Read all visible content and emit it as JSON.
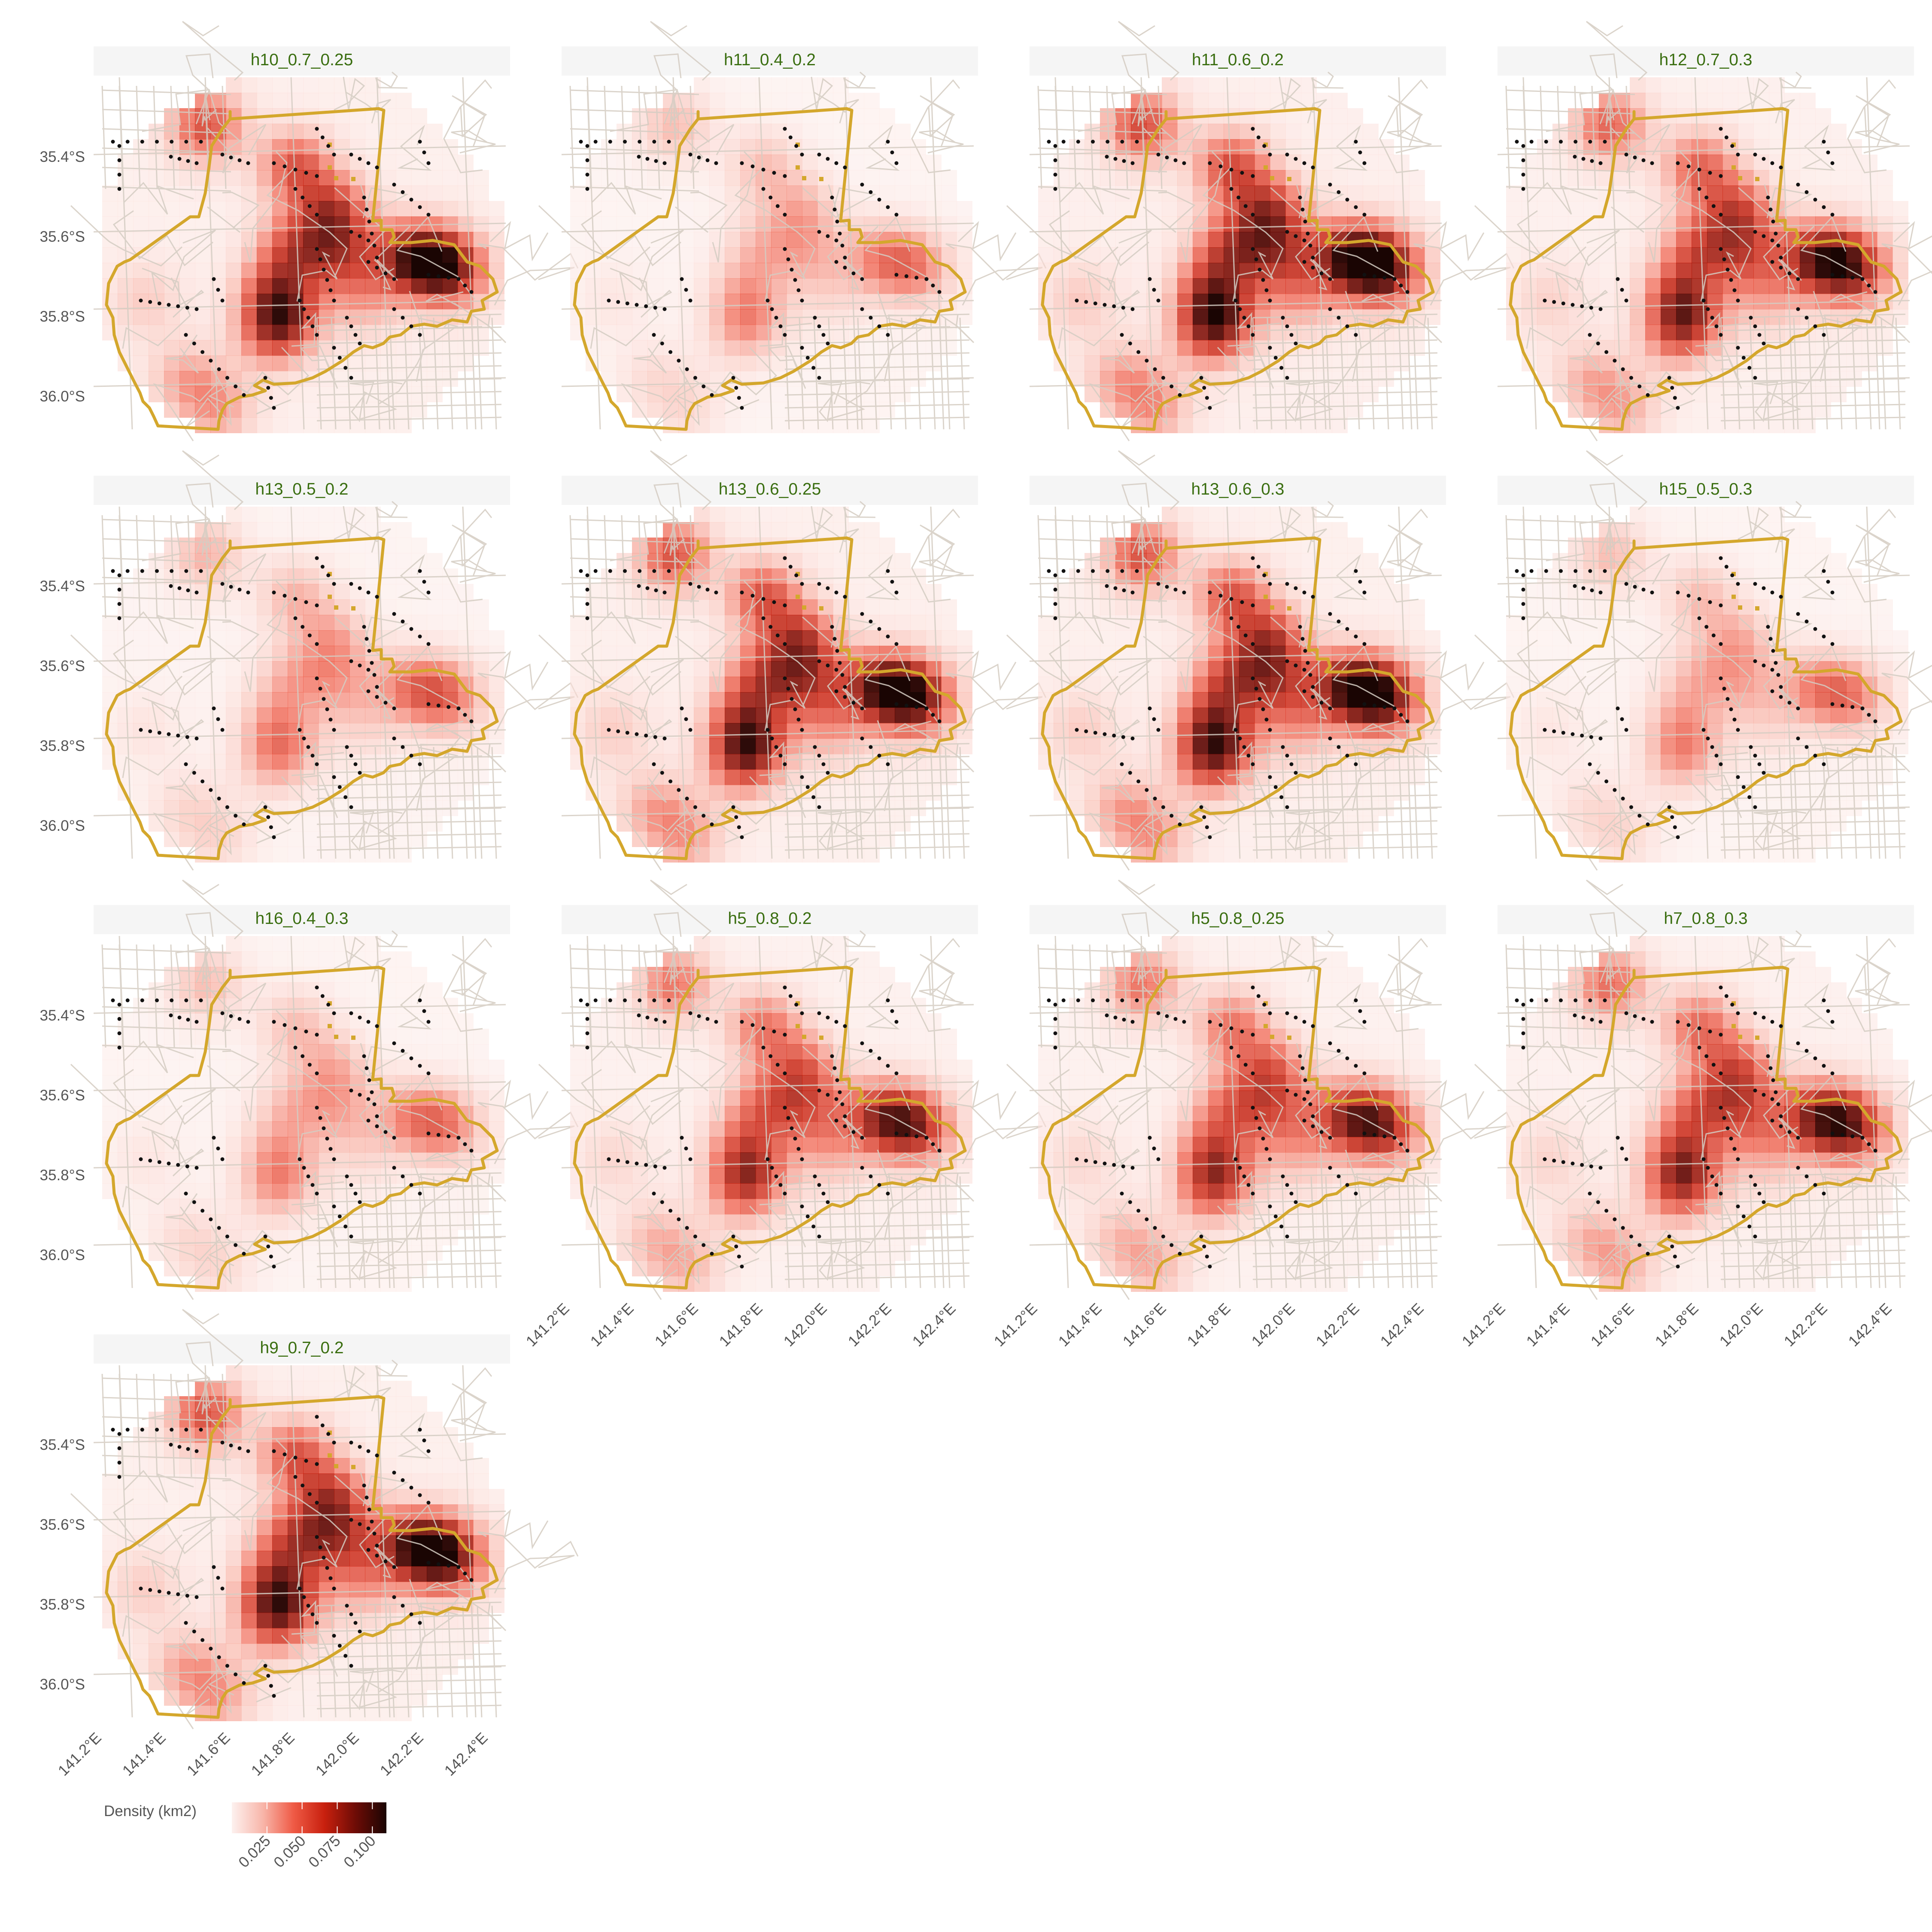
{
  "figure": {
    "panels": [
      {
        "title": "h10_0.7_0.25",
        "strength": 1.0
      },
      {
        "title": "h11_0.4_0.2",
        "strength": 0.45
      },
      {
        "title": "h11_0.6_0.2",
        "strength": 1.05
      },
      {
        "title": "h12_0.7_0.3",
        "strength": 0.9
      },
      {
        "title": "h13_0.5_0.2",
        "strength": 0.5
      },
      {
        "title": "h13_0.6_0.25",
        "strength": 1.0
      },
      {
        "title": "h13_0.6_0.3",
        "strength": 1.0
      },
      {
        "title": "h15_0.5_0.3",
        "strength": 0.45
      },
      {
        "title": "h16_0.4_0.3",
        "strength": 0.45
      },
      {
        "title": "h5_0.8_0.2",
        "strength": 0.8
      },
      {
        "title": "h5_0.8_0.25",
        "strength": 0.8
      },
      {
        "title": "h7_0.8_0.3",
        "strength": 0.85
      },
      {
        "title": "h9_0.7_0.2",
        "strength": 1.0
      }
    ],
    "y_ticks": [
      "35.4°S",
      "35.6°S",
      "35.8°S",
      "36.0°S"
    ],
    "x_ticks": [
      "141.2°E",
      "141.4°E",
      "141.6°E",
      "141.8°E",
      "142.0°E",
      "142.2°E",
      "142.4°E"
    ],
    "legend": {
      "title": "Density (km2)",
      "ticks": [
        "0.025",
        "0.050",
        "0.075",
        "0.100"
      ],
      "range": [
        0,
        0.11
      ],
      "colors": [
        "#fdf1ef",
        "#f8b6aa",
        "#ef5a45",
        "#c8200e",
        "#6e0c06",
        "#1a0503"
      ]
    },
    "colors": {
      "boundary": "#d4a72c",
      "roads": "#d5cdc3",
      "points": "#111111",
      "strip_text": "#3a6e10"
    }
  }
}
